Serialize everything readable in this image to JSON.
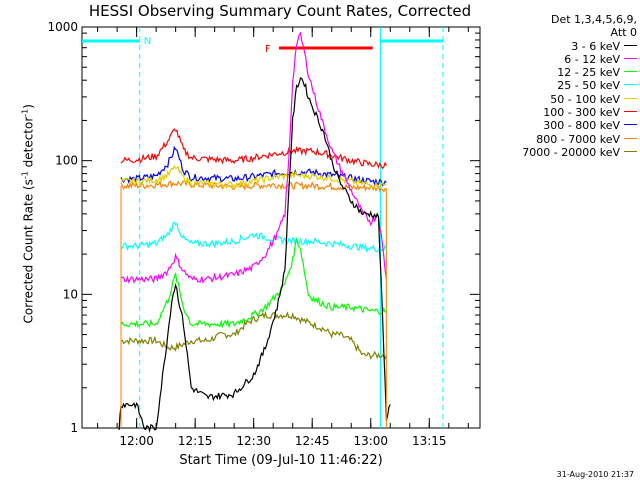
{
  "title": "HESSI Observing Summary Count Rates, Corrected",
  "legend": {
    "header1": "Det 1,3,4,5,6,9,",
    "header2": "Att 0",
    "items": [
      {
        "label": "3 - 6 keV",
        "color": "#000000"
      },
      {
        "label": "6 - 12 keV",
        "color": "#ff00ff"
      },
      {
        "label": "12 - 25 keV",
        "color": "#00ff00"
      },
      {
        "label": "25 - 50 keV",
        "color": "#00ffff"
      },
      {
        "label": "50 - 100 keV",
        "color": "#e0d000"
      },
      {
        "label": "100 - 300 keV",
        "color": "#ff0000"
      },
      {
        "label": "300 - 800 keV",
        "color": "#0000ff"
      },
      {
        "label": "800 - 7000 keV",
        "color": "#ff8000"
      },
      {
        "label": "7000 - 20000 keV",
        "color": "#808000"
      }
    ]
  },
  "footer": "31-Aug-2010 21:37",
  "xlabel": "Start Time (09-Jul-10 11:46:22)",
  "ylabel_main": "Corrected Count Rate (s",
  "ylabel_sup1": "-1",
  "ylabel_mid": " detector",
  "ylabel_sup2": "-1",
  "ylabel_end": ")",
  "chart_data": {
    "type": "line",
    "yscale": "log",
    "ylim": [
      1,
      1000
    ],
    "xlim_minutes": [
      -14,
      88
    ],
    "xticks": [
      {
        "label": "12:00",
        "t": 0
      },
      {
        "label": "12:15",
        "t": 15
      },
      {
        "label": "12:30",
        "t": 30
      },
      {
        "label": "12:45",
        "t": 45
      },
      {
        "label": "13:00",
        "t": 60
      },
      {
        "label": "13:15",
        "t": 75
      }
    ],
    "yticks": [
      {
        "label": "1",
        "v": 1
      },
      {
        "label": "10",
        "v": 10
      },
      {
        "label": "100",
        "v": 100
      },
      {
        "label": "1000",
        "v": 1000
      }
    ],
    "annotations": [
      {
        "text": "N",
        "color": "#00ffff"
      },
      {
        "text": "F",
        "color": "#ff0000"
      }
    ],
    "series": [
      {
        "name": "3 - 6 keV",
        "color": "#000000",
        "t": [
          -4.5,
          -4,
          0,
          2,
          5,
          8,
          9,
          10,
          12,
          14,
          18,
          25,
          30,
          33,
          36,
          38,
          39,
          40,
          41,
          42,
          43,
          44,
          46,
          48,
          50,
          52,
          55,
          58,
          60,
          62,
          64,
          65
        ],
        "values": [
          1,
          1.5,
          1.5,
          1,
          1,
          5,
          9,
          12,
          6,
          2,
          1.7,
          1.8,
          2.5,
          4,
          8,
          15,
          60,
          200,
          350,
          420,
          380,
          300,
          220,
          160,
          100,
          70,
          50,
          40,
          40,
          38,
          1.2,
          1.5
        ]
      },
      {
        "name": "6 - 12 keV",
        "color": "#ff00ff",
        "t": [
          -4,
          0,
          5,
          8,
          10,
          12,
          14,
          18,
          25,
          30,
          33,
          36,
          38,
          39,
          40,
          41,
          42,
          43,
          44,
          46,
          48,
          50,
          52,
          55,
          58,
          60,
          62,
          64
        ],
        "values": [
          13,
          13,
          13,
          15,
          19,
          15,
          13,
          13,
          14,
          16,
          20,
          28,
          40,
          100,
          400,
          750,
          870,
          650,
          450,
          280,
          180,
          120,
          90,
          60,
          40,
          35,
          40,
          13
        ]
      },
      {
        "name": "12 - 25 keV",
        "color": "#00ff00",
        "t": [
          -4,
          0,
          5,
          8,
          10,
          12,
          14,
          18,
          25,
          30,
          33,
          36,
          38,
          40,
          41,
          42,
          43,
          44,
          46,
          50,
          55,
          60,
          64
        ],
        "values": [
          6,
          6,
          6,
          9,
          14,
          8,
          6,
          6,
          6,
          7,
          8,
          10,
          12,
          18,
          26,
          22,
          15,
          10,
          9,
          8,
          8,
          7.5,
          7.5
        ]
      },
      {
        "name": "25 - 50 keV",
        "color": "#00ffff",
        "t": [
          -4,
          0,
          5,
          8,
          10,
          12,
          14,
          20,
          25,
          30,
          35,
          40,
          45,
          50,
          55,
          60,
          64
        ],
        "values": [
          23,
          23,
          24,
          28,
          35,
          26,
          24,
          24,
          25,
          28,
          26,
          25,
          25,
          24,
          23,
          22,
          22
        ]
      },
      {
        "name": "50 - 100 keV",
        "color": "#e0d000",
        "t": [
          -4,
          0,
          5,
          8,
          10,
          12,
          14,
          20,
          25,
          30,
          35,
          40,
          45,
          50,
          55,
          60,
          64
        ],
        "values": [
          70,
          70,
          72,
          78,
          90,
          75,
          68,
          67,
          66,
          70,
          75,
          78,
          77,
          74,
          70,
          66,
          66
        ]
      },
      {
        "name": "100 - 300 keV",
        "color": "#ff0000",
        "t": [
          -4,
          0,
          5,
          8,
          10,
          12,
          14,
          20,
          25,
          30,
          35,
          40,
          45,
          50,
          55,
          60,
          64
        ],
        "values": [
          100,
          102,
          108,
          140,
          175,
          120,
          105,
          102,
          100,
          105,
          112,
          118,
          118,
          110,
          100,
          94,
          92
        ]
      },
      {
        "name": "300 - 800 keV",
        "color": "#0000ff",
        "t": [
          -4,
          0,
          5,
          8,
          10,
          12,
          14,
          20,
          25,
          30,
          35,
          40,
          45,
          50,
          55,
          60,
          64
        ],
        "values": [
          73,
          73,
          77,
          95,
          125,
          85,
          75,
          74,
          73,
          76,
          80,
          82,
          82,
          78,
          74,
          70,
          69
        ]
      },
      {
        "name": "800 - 7000 keV",
        "color": "#ff8000",
        "t": [
          -4,
          0,
          5,
          10,
          15,
          20,
          25,
          30,
          35,
          40,
          45,
          50,
          55,
          60,
          64
        ],
        "values": [
          65,
          65,
          66,
          68,
          66,
          65,
          64,
          65,
          66,
          65,
          65,
          64,
          63,
          63,
          62
        ]
      },
      {
        "name": "7000 - 20000 keV",
        "color": "#808000",
        "t": [
          -4,
          0,
          5,
          8,
          10,
          14,
          18,
          22,
          25,
          28,
          30,
          33,
          36,
          38,
          40,
          42,
          45,
          48,
          50,
          52,
          55,
          58,
          60,
          64
        ],
        "values": [
          4.5,
          4.5,
          4.5,
          4,
          4,
          4.5,
          4.5,
          5,
          5,
          6,
          6.5,
          7,
          7,
          7,
          7,
          6.5,
          6,
          5.5,
          5,
          5,
          4.5,
          3.5,
          3.5,
          3.5
        ]
      }
    ]
  }
}
